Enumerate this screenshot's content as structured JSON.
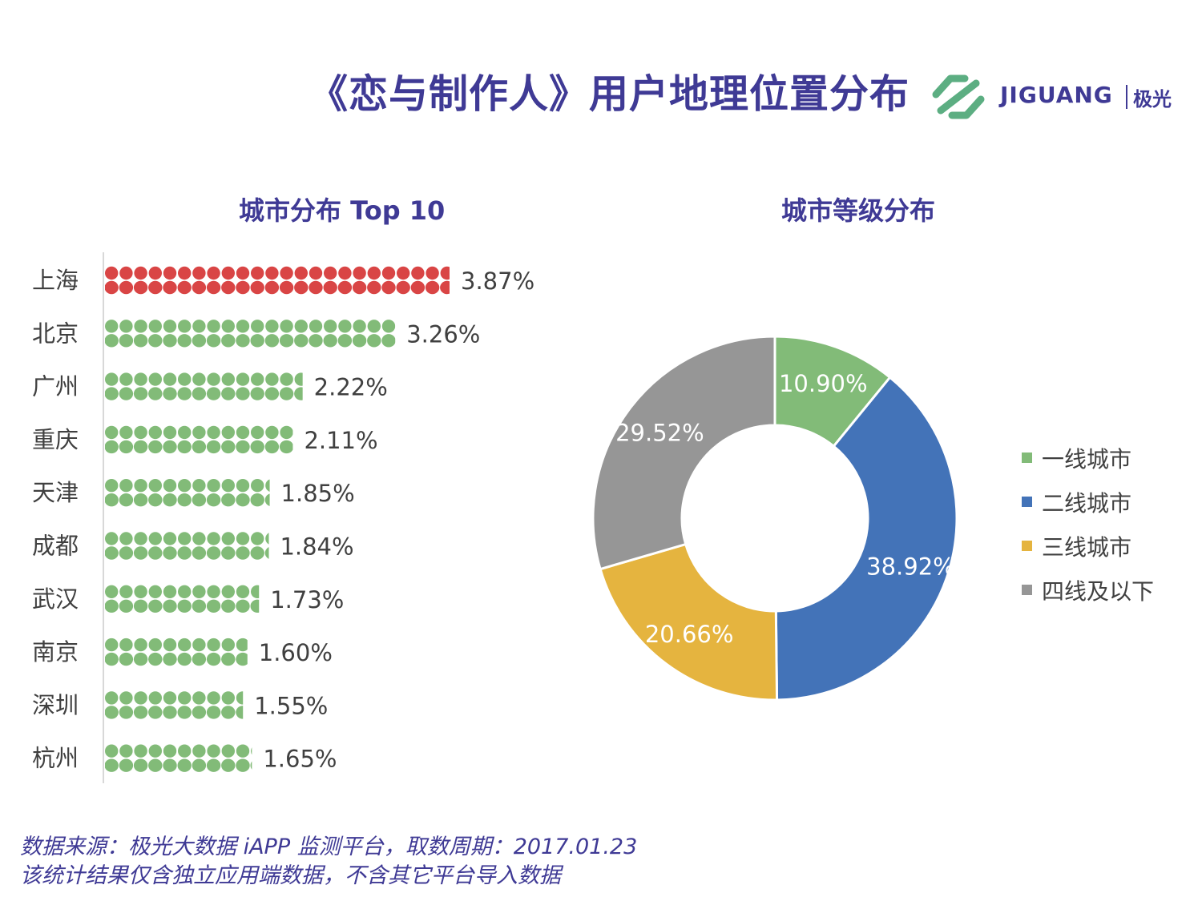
{
  "page": {
    "title": "《恋与制作人》用户地理位置分布",
    "footer_line1": "数据来源：极光大数据 iAPP 监测平台，取数周期：2017.01.23",
    "footer_line2": "该统计结果仅含独立应用端数据，不含其它平台导入数据"
  },
  "logo": {
    "brand": "JIGUANG",
    "brand_cn": "极光",
    "icon": "jiguang-logo-icon",
    "color": "#5cae82"
  },
  "chart_data": [
    {
      "type": "bar",
      "title": "城市分布 Top 10",
      "categories": [
        "上海",
        "北京",
        "广州",
        "重庆",
        "天津",
        "成都",
        "武汉",
        "南京",
        "深圳",
        "杭州"
      ],
      "values": [
        3.87,
        3.26,
        2.22,
        2.11,
        1.85,
        1.84,
        1.73,
        1.6,
        1.55,
        1.65
      ],
      "value_labels": [
        "3.87%",
        "3.26%",
        "2.22%",
        "2.11%",
        "1.85%",
        "1.84%",
        "1.73%",
        "1.60%",
        "1.55%",
        "1.65%"
      ],
      "unit": "%",
      "highlight_color": "#d94545",
      "bar_color": "#82bb78",
      "style": "pictograph"
    },
    {
      "type": "pie",
      "subtype": "donut",
      "title": "城市等级分布",
      "categories": [
        "一线城市",
        "二线城市",
        "三线城市",
        "四线及以下"
      ],
      "values": [
        10.9,
        38.92,
        20.66,
        29.52
      ],
      "value_labels": [
        "10.90%",
        "38.92%",
        "20.66%",
        "29.52%"
      ],
      "colors": [
        "#82bb78",
        "#4373b8",
        "#e5b43f",
        "#969696"
      ],
      "legend": "right"
    }
  ]
}
